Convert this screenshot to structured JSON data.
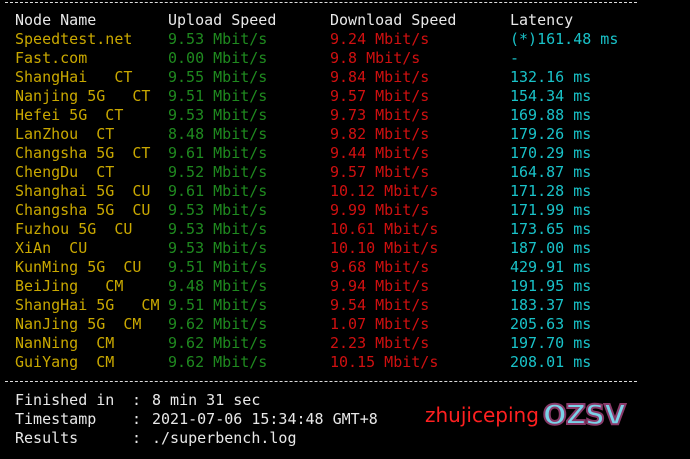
{
  "header": {
    "node": "Node Name",
    "upload": "Upload Speed",
    "download": "Download Speed",
    "latency": "Latency"
  },
  "rows": [
    {
      "node": "Speedtest.net",
      "upload": "9.53 Mbit/s",
      "download": "9.24 Mbit/s",
      "latency": "(*)161.48 ms"
    },
    {
      "node": "Fast.com",
      "upload": "0.00 Mbit/s",
      "download": "9.8 Mbit/s",
      "latency": "-"
    },
    {
      "node": "ShangHai   CT",
      "upload": "9.55 Mbit/s",
      "download": "9.84 Mbit/s",
      "latency": "132.16 ms"
    },
    {
      "node": "Nanjing 5G   CT",
      "upload": "9.51 Mbit/s",
      "download": "9.57 Mbit/s",
      "latency": "154.34 ms"
    },
    {
      "node": "Hefei 5G  CT",
      "upload": "9.53 Mbit/s",
      "download": "9.73 Mbit/s",
      "latency": "169.88 ms"
    },
    {
      "node": "LanZhou  CT",
      "upload": "8.48 Mbit/s",
      "download": "9.82 Mbit/s",
      "latency": "179.26 ms"
    },
    {
      "node": "Changsha 5G  CT",
      "upload": "9.61 Mbit/s",
      "download": "9.44 Mbit/s",
      "latency": "170.29 ms"
    },
    {
      "node": "ChengDu  CT",
      "upload": "9.52 Mbit/s",
      "download": "9.57 Mbit/s",
      "latency": "164.87 ms"
    },
    {
      "node": "Shanghai 5G  CU",
      "upload": "9.61 Mbit/s",
      "download": "10.12 Mbit/s",
      "latency": "171.28 ms"
    },
    {
      "node": "Changsha 5G  CU",
      "upload": "9.53 Mbit/s",
      "download": "9.99 Mbit/s",
      "latency": "171.99 ms"
    },
    {
      "node": "Fuzhou 5G  CU",
      "upload": "9.53 Mbit/s",
      "download": "10.61 Mbit/s",
      "latency": "173.65 ms"
    },
    {
      "node": "XiAn  CU",
      "upload": "9.53 Mbit/s",
      "download": "10.10 Mbit/s",
      "latency": "187.00 ms"
    },
    {
      "node": "KunMing 5G  CU",
      "upload": "9.51 Mbit/s",
      "download": "9.68 Mbit/s",
      "latency": "429.91 ms"
    },
    {
      "node": "BeiJing   CM",
      "upload": "9.48 Mbit/s",
      "download": "9.94 Mbit/s",
      "latency": "191.95 ms"
    },
    {
      "node": "ShangHai 5G   CM",
      "upload": "9.51 Mbit/s",
      "download": "9.54 Mbit/s",
      "latency": "183.37 ms"
    },
    {
      "node": "NanJing 5G  CM",
      "upload": "9.62 Mbit/s",
      "download": "1.07 Mbit/s",
      "latency": "205.63 ms"
    },
    {
      "node": "NanNing  CM",
      "upload": "9.62 Mbit/s",
      "download": "2.23 Mbit/s",
      "latency": "197.70 ms"
    },
    {
      "node": "GuiYang  CM",
      "upload": "9.62 Mbit/s",
      "download": "10.15 Mbit/s",
      "latency": "208.01 ms"
    }
  ],
  "footer": [
    {
      "key": "Finished in",
      "value": "8 min 31 sec"
    },
    {
      "key": "Timestamp",
      "value": "2021-07-06 15:34:48 GMT+8"
    },
    {
      "key": "Results",
      "value": "./superbench.log"
    }
  ],
  "separator": ":",
  "watermark": {
    "text": "zhujiceping",
    "logo": "OZSV"
  },
  "colors": {
    "node": "#c9a800",
    "upload": "#1f8a1f",
    "download": "#d01010",
    "latency": "#19c2c8"
  }
}
